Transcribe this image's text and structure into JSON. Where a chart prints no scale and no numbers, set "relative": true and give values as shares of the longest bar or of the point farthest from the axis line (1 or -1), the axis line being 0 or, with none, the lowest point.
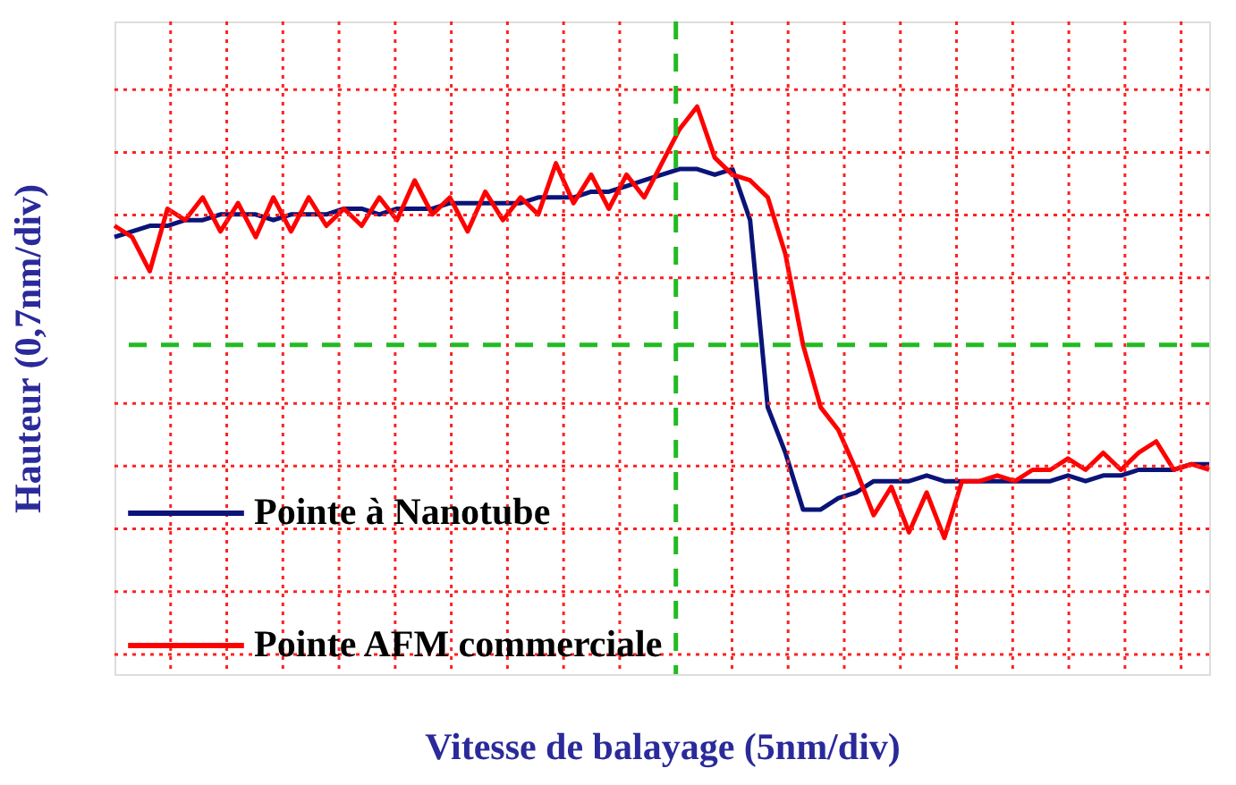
{
  "chart_data": {
    "type": "line",
    "relative": true,
    "xlabel": "Vitesse de balayage (5nm/div)",
    "ylabel": "Hauteur (0,7nm/div)",
    "categories": [
      null,
      null,
      null,
      null,
      null,
      null,
      null,
      null,
      null,
      null,
      null,
      null,
      null,
      null,
      null,
      null,
      null,
      null,
      null,
      null,
      null,
      null,
      null,
      null,
      null,
      null,
      null,
      null,
      null,
      null,
      null,
      null,
      null,
      null,
      null,
      null,
      null,
      null,
      null,
      null,
      null,
      null,
      null,
      null,
      null,
      null,
      null,
      null,
      null,
      null,
      null,
      null,
      null,
      null,
      null,
      null,
      null,
      null,
      null,
      null,
      null,
      null,
      null
    ],
    "series": [
      {
        "name": "Pointe à Nanotube",
        "color": "#0a1478",
        "values": [
          0.77,
          0.78,
          0.79,
          0.79,
          0.8,
          0.8,
          0.81,
          0.81,
          0.81,
          0.8,
          0.81,
          0.81,
          0.81,
          0.82,
          0.82,
          0.81,
          0.82,
          0.82,
          0.82,
          0.83,
          0.83,
          0.83,
          0.83,
          0.83,
          0.84,
          0.84,
          0.84,
          0.85,
          0.85,
          0.86,
          0.87,
          0.88,
          0.89,
          0.89,
          0.88,
          0.89,
          0.8,
          0.47,
          0.39,
          0.29,
          0.29,
          0.31,
          0.32,
          0.34,
          0.34,
          0.34,
          0.35,
          0.34,
          0.34,
          0.34,
          0.34,
          0.34,
          0.34,
          0.34,
          0.35,
          0.34,
          0.35,
          0.35,
          0.36,
          0.36,
          0.36,
          0.37,
          0.37
        ]
      },
      {
        "name": "Pointe AFM commerciale",
        "color": "#ff0000",
        "values": [
          0.79,
          0.77,
          0.71,
          0.82,
          0.8,
          0.84,
          0.78,
          0.83,
          0.77,
          0.84,
          0.78,
          0.84,
          0.79,
          0.82,
          0.79,
          0.84,
          0.8,
          0.87,
          0.81,
          0.84,
          0.78,
          0.85,
          0.8,
          0.84,
          0.81,
          0.9,
          0.83,
          0.88,
          0.82,
          0.88,
          0.84,
          0.9,
          0.96,
          1.0,
          0.91,
          0.88,
          0.87,
          0.84,
          0.74,
          0.58,
          0.47,
          0.43,
          0.36,
          0.28,
          0.33,
          0.25,
          0.32,
          0.24,
          0.34,
          0.34,
          0.35,
          0.34,
          0.36,
          0.36,
          0.38,
          0.36,
          0.39,
          0.36,
          0.39,
          0.41,
          0.36,
          0.37,
          0.36
        ]
      }
    ],
    "ref_lines": [
      {
        "axis": "y",
        "value": 0.58,
        "color": "#22bb22",
        "line_style": "dashed"
      }
    ],
    "grid": true,
    "legend": "bottom left",
    "tick_labels": false,
    "marker": "none",
    "line_style": "solid"
  }
}
